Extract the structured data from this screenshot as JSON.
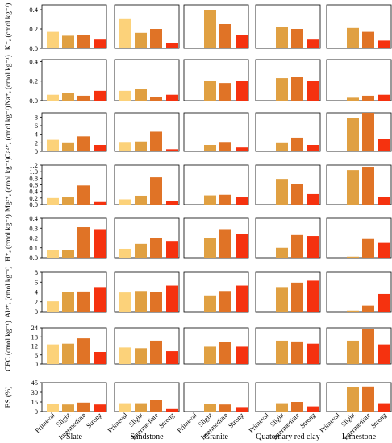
{
  "chart_data": {
    "type": "bar",
    "categories": [
      "Primeval",
      "Slight",
      "Intermediate",
      "Strong"
    ],
    "colors": [
      "#fcd27a",
      "#e0a042",
      "#e07326",
      "#f5320f"
    ],
    "groups": [
      "Slate",
      "Sandstone",
      "Granite",
      "Quaternary red clay",
      "Limestone"
    ],
    "panels": [
      {
        "ylabel": "K⁺ₑ (cmol kg⁻¹)",
        "ylim": [
          0,
          0.45
        ],
        "yticks": [
          "0.0",
          "0.2",
          "0.4"
        ],
        "ytick_values": [
          0,
          0.2,
          0.4
        ],
        "values": [
          [
            0.17,
            0.13,
            0.14,
            0.09
          ],
          [
            0.31,
            0.16,
            0.2,
            0.05
          ],
          [
            0.0,
            0.4,
            0.25,
            0.14
          ],
          [
            0.0,
            0.22,
            0.2,
            0.09
          ],
          [
            0.0,
            0.21,
            0.17,
            0.08
          ]
        ]
      },
      {
        "ylabel": "Na⁺ₑ (cmol kg⁻¹)",
        "ylim": [
          0,
          0.42
        ],
        "yticks": [
          "0.0",
          "0.2",
          "0.4"
        ],
        "ytick_values": [
          0,
          0.2,
          0.4
        ],
        "values": [
          [
            0.06,
            0.08,
            0.05,
            0.1
          ],
          [
            0.1,
            0.12,
            0.04,
            0.06
          ],
          [
            0.0,
            0.2,
            0.18,
            0.2
          ],
          [
            0.0,
            0.23,
            0.24,
            0.2
          ],
          [
            0.0,
            0.03,
            0.05,
            0.06
          ]
        ]
      },
      {
        "ylabel": "Ca²⁺ₑ (cmol kg⁻¹)",
        "ylim": [
          0,
          9
        ],
        "yticks": [
          "0",
          "2",
          "4",
          "6",
          "8"
        ],
        "ytick_values": [
          0,
          2,
          4,
          6,
          8
        ],
        "values": [
          [
            2.7,
            2.1,
            3.5,
            1.5
          ],
          [
            2.2,
            2.3,
            4.6,
            0.5
          ],
          [
            0.0,
            1.5,
            2.2,
            0.9
          ],
          [
            0.0,
            2.1,
            3.2,
            1.5
          ],
          [
            0.0,
            7.8,
            9.3,
            2.9
          ]
        ]
      },
      {
        "ylabel": "Mg²⁺ₑ (cmol kg⁻¹)",
        "ylim": [
          0,
          1.2
        ],
        "yticks": [
          "0.0",
          "0.2",
          "0.4",
          "0.6",
          "0.8",
          "1.0",
          "1.2"
        ],
        "ytick_values": [
          0,
          0.2,
          0.4,
          0.6,
          0.8,
          1.0,
          1.2
        ],
        "values": [
          [
            0.2,
            0.22,
            0.58,
            0.08
          ],
          [
            0.16,
            0.27,
            0.83,
            0.1
          ],
          [
            0.0,
            0.28,
            0.3,
            0.22
          ],
          [
            0.0,
            0.78,
            0.63,
            0.32
          ],
          [
            0.0,
            1.05,
            1.15,
            0.23
          ]
        ]
      },
      {
        "ylabel": "H⁺ₑ (cmol kg⁻¹)",
        "ylim": [
          0,
          0.4
        ],
        "yticks": [
          "0.0",
          "0.1",
          "0.2",
          "0.3",
          "0.4"
        ],
        "ytick_values": [
          0,
          0.1,
          0.2,
          0.3,
          0.4
        ],
        "values": [
          [
            0.08,
            0.08,
            0.31,
            0.29
          ],
          [
            0.09,
            0.14,
            0.2,
            0.17
          ],
          [
            0.0,
            0.2,
            0.29,
            0.24
          ],
          [
            0.0,
            0.1,
            0.23,
            0.22
          ],
          [
            0.0,
            0.01,
            0.19,
            0.15
          ]
        ]
      },
      {
        "ylabel": "Al³⁺ₑ (cmol kg⁻¹)",
        "ylim": [
          0,
          8
        ],
        "yticks": [
          "0",
          "2",
          "4",
          "6",
          "8"
        ],
        "ytick_values": [
          0,
          2,
          4,
          6,
          8
        ],
        "values": [
          [
            2.1,
            4.0,
            4.1,
            5.0
          ],
          [
            3.9,
            4.2,
            4.0,
            5.3
          ],
          [
            0.0,
            3.3,
            4.2,
            5.3
          ],
          [
            0.0,
            5.0,
            5.9,
            6.3
          ],
          [
            0.0,
            0.2,
            1.2,
            3.6
          ]
        ]
      },
      {
        "ylabel": "CEC (cmol kg⁻¹)",
        "ylim": [
          0,
          24
        ],
        "yticks": [
          "0",
          "6",
          "12",
          "18",
          "24"
        ],
        "ytick_values": [
          0,
          6,
          12,
          18,
          24
        ],
        "values": [
          [
            13.0,
            13.5,
            17.0,
            8.0
          ],
          [
            11.0,
            10.5,
            15.5,
            8.5
          ],
          [
            0.0,
            11.5,
            14.5,
            11.5
          ],
          [
            0.0,
            15.5,
            15.0,
            13.5
          ],
          [
            0.0,
            15.5,
            23.0,
            13.0
          ]
        ]
      },
      {
        "ylabel": "BS (%)",
        "ylim": [
          0,
          45
        ],
        "yticks": [
          "0",
          "15",
          "30",
          "45"
        ],
        "ytick_values": [
          0,
          15,
          30,
          45
        ],
        "values": [
          [
            12,
            11,
            14,
            11
          ],
          [
            13,
            13,
            18,
            4
          ],
          [
            0,
            12,
            11,
            7
          ],
          [
            0,
            13,
            15,
            8
          ],
          [
            0,
            38,
            39,
            13
          ]
        ]
      }
    ]
  }
}
